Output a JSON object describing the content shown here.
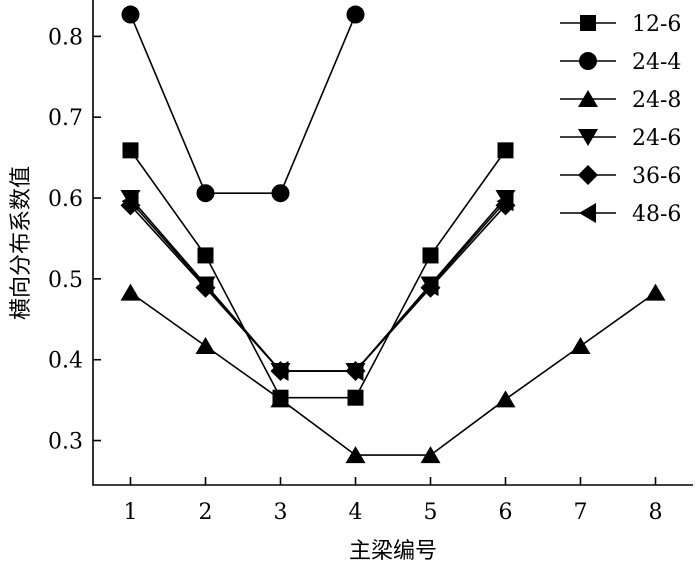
{
  "chart_data": {
    "type": "line",
    "xlabel": "主梁编号",
    "ylabel": "横向分布系数值",
    "xlim": [
      0.5,
      8.5
    ],
    "ylim": [
      0.245,
      0.845
    ],
    "x_ticks": [
      1,
      2,
      3,
      4,
      5,
      6,
      7,
      8
    ],
    "y_ticks": [
      0.3,
      0.4,
      0.5,
      0.6,
      0.7,
      0.8
    ],
    "y_tick_labels": [
      "0.3",
      "0.4",
      "0.5",
      "0.6",
      "0.7",
      "0.8"
    ],
    "grid": false,
    "legend_position": "top-right",
    "series": [
      {
        "name": "12-6",
        "marker": "square",
        "x": [
          1,
          2,
          3,
          4,
          5,
          6
        ],
        "y": [
          0.659,
          0.529,
          0.353,
          0.353,
          0.529,
          0.659
        ]
      },
      {
        "name": "24-4",
        "marker": "circle",
        "x": [
          1,
          2,
          3,
          4
        ],
        "y": [
          0.827,
          0.606,
          0.606,
          0.827
        ]
      },
      {
        "name": "24-8",
        "marker": "triangle-up",
        "x": [
          1,
          2,
          3,
          4,
          5,
          6,
          7,
          8
        ],
        "y": [
          0.483,
          0.417,
          0.351,
          0.282,
          0.282,
          0.351,
          0.417,
          0.483
        ]
      },
      {
        "name": "24-6",
        "marker": "triangle-down",
        "x": [
          1,
          2,
          3,
          4,
          5,
          6
        ],
        "y": [
          0.6,
          0.493,
          0.386,
          0.386,
          0.493,
          0.6
        ]
      },
      {
        "name": "36-6",
        "marker": "diamond",
        "x": [
          1,
          2,
          3,
          4,
          5,
          6
        ],
        "y": [
          0.591,
          0.489,
          0.386,
          0.386,
          0.489,
          0.591
        ]
      },
      {
        "name": "48-6",
        "marker": "triangle-left",
        "x": [
          1,
          2,
          3,
          4,
          5,
          6
        ],
        "y": [
          0.596,
          0.491,
          0.386,
          0.386,
          0.491,
          0.596
        ]
      }
    ]
  }
}
